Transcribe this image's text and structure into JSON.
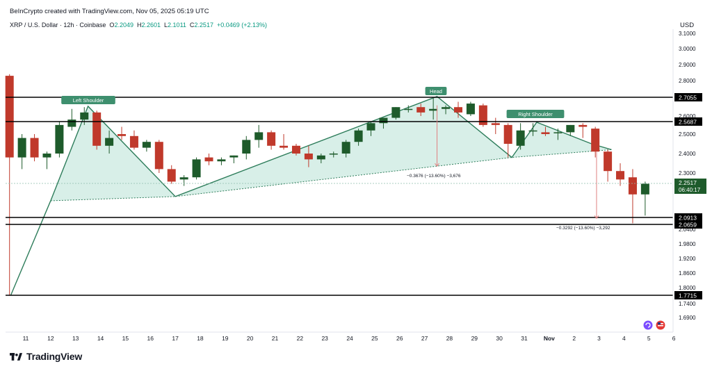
{
  "attribution": "BeInCrypto created with TradingView.com, Nov 05, 2025 05:19 UTC",
  "symbol": {
    "title": "XRP / U.S. Dollar · 12h · Coinbase",
    "o_label": "O",
    "o": "2.2049",
    "h_label": "H",
    "h": "2.2601",
    "l_label": "L",
    "l": "2.1011",
    "c_label": "C",
    "c": "2.2517",
    "change": "+0.0469 (+2.13%)"
  },
  "currency": "USD",
  "logo_text": "TradingView",
  "colors": {
    "up": "#1e5b2b",
    "down": "#c0392b",
    "pattern_fill": "#d4ede6",
    "pattern_line": "#2e7d5b",
    "badge": "#3e8f6e",
    "measure_line": "#e08080",
    "axis_text": "#131722"
  },
  "chart_data": {
    "type": "candlestick",
    "ylim": [
      1.65,
      3.12
    ],
    "y_ticks": [
      "3.1000",
      "3.0000",
      "2.9000",
      "2.8000",
      "2.6000",
      "2.5000",
      "2.4000",
      "2.3000",
      "2.0400",
      "1.9800",
      "1.9200",
      "1.8600",
      "1.8000",
      "1.7400",
      "1.6900"
    ],
    "x_ticks": [
      "11",
      "12",
      "13",
      "14",
      "15",
      "16",
      "17",
      "18",
      "19",
      "20",
      "21",
      "22",
      "23",
      "24",
      "25",
      "26",
      "27",
      "28",
      "29",
      "30",
      "31",
      "Nov",
      "2",
      "3",
      "4",
      "5",
      "6"
    ],
    "candles": [
      {
        "x": 10.35,
        "o": 2.83,
        "h": 2.84,
        "l": 1.77,
        "c": 2.38
      },
      {
        "x": 10.85,
        "o": 2.38,
        "h": 2.5,
        "l": 2.32,
        "c": 2.48
      },
      {
        "x": 11.35,
        "o": 2.48,
        "h": 2.5,
        "l": 2.36,
        "c": 2.38
      },
      {
        "x": 11.85,
        "o": 2.38,
        "h": 2.41,
        "l": 2.32,
        "c": 2.4
      },
      {
        "x": 12.35,
        "o": 2.4,
        "h": 2.57,
        "l": 2.38,
        "c": 2.55
      },
      {
        "x": 12.85,
        "o": 2.54,
        "h": 2.64,
        "l": 2.52,
        "c": 2.58
      },
      {
        "x": 13.35,
        "o": 2.58,
        "h": 2.65,
        "l": 2.55,
        "c": 2.62
      },
      {
        "x": 13.85,
        "o": 2.62,
        "h": 2.63,
        "l": 2.42,
        "c": 2.44
      },
      {
        "x": 14.35,
        "o": 2.44,
        "h": 2.52,
        "l": 2.4,
        "c": 2.48
      },
      {
        "x": 14.85,
        "o": 2.5,
        "h": 2.54,
        "l": 2.47,
        "c": 2.49
      },
      {
        "x": 15.35,
        "o": 2.49,
        "h": 2.52,
        "l": 2.42,
        "c": 2.43
      },
      {
        "x": 15.85,
        "o": 2.43,
        "h": 2.47,
        "l": 2.41,
        "c": 2.46
      },
      {
        "x": 16.35,
        "o": 2.46,
        "h": 2.47,
        "l": 2.3,
        "c": 2.32
      },
      {
        "x": 16.85,
        "o": 2.32,
        "h": 2.34,
        "l": 2.25,
        "c": 2.26
      },
      {
        "x": 17.35,
        "o": 2.27,
        "h": 2.29,
        "l": 2.24,
        "c": 2.28
      },
      {
        "x": 17.85,
        "o": 2.28,
        "h": 2.38,
        "l": 2.27,
        "c": 2.37
      },
      {
        "x": 18.35,
        "o": 2.38,
        "h": 2.4,
        "l": 2.34,
        "c": 2.36
      },
      {
        "x": 18.85,
        "o": 2.36,
        "h": 2.38,
        "l": 2.34,
        "c": 2.37
      },
      {
        "x": 19.35,
        "o": 2.38,
        "h": 2.39,
        "l": 2.35,
        "c": 2.39
      },
      {
        "x": 19.85,
        "o": 2.4,
        "h": 2.49,
        "l": 2.37,
        "c": 2.47
      },
      {
        "x": 20.35,
        "o": 2.47,
        "h": 2.55,
        "l": 2.43,
        "c": 2.51
      },
      {
        "x": 20.85,
        "o": 2.51,
        "h": 2.52,
        "l": 2.42,
        "c": 2.44
      },
      {
        "x": 21.35,
        "o": 2.44,
        "h": 2.5,
        "l": 2.42,
        "c": 2.43
      },
      {
        "x": 21.85,
        "o": 2.44,
        "h": 2.45,
        "l": 2.39,
        "c": 2.4
      },
      {
        "x": 22.35,
        "o": 2.4,
        "h": 2.44,
        "l": 2.33,
        "c": 2.37
      },
      {
        "x": 22.85,
        "o": 2.37,
        "h": 2.4,
        "l": 2.35,
        "c": 2.39
      },
      {
        "x": 23.35,
        "o": 2.4,
        "h": 2.41,
        "l": 2.38,
        "c": 2.4
      },
      {
        "x": 23.85,
        "o": 2.4,
        "h": 2.47,
        "l": 2.38,
        "c": 2.46
      },
      {
        "x": 24.35,
        "o": 2.46,
        "h": 2.53,
        "l": 2.44,
        "c": 2.52
      },
      {
        "x": 24.85,
        "o": 2.52,
        "h": 2.57,
        "l": 2.49,
        "c": 2.56
      },
      {
        "x": 25.35,
        "o": 2.56,
        "h": 2.59,
        "l": 2.53,
        "c": 2.59
      },
      {
        "x": 25.85,
        "o": 2.59,
        "h": 2.65,
        "l": 2.58,
        "c": 2.65
      },
      {
        "x": 26.35,
        "o": 2.64,
        "h": 2.66,
        "l": 2.62,
        "c": 2.64
      },
      {
        "x": 26.85,
        "o": 2.65,
        "h": 2.67,
        "l": 2.6,
        "c": 2.62
      },
      {
        "x": 27.35,
        "o": 2.63,
        "h": 2.7,
        "l": 2.58,
        "c": 2.64
      },
      {
        "x": 27.85,
        "o": 2.64,
        "h": 2.66,
        "l": 2.61,
        "c": 2.65
      },
      {
        "x": 28.35,
        "o": 2.65,
        "h": 2.68,
        "l": 2.59,
        "c": 2.62
      },
      {
        "x": 28.85,
        "o": 2.61,
        "h": 2.68,
        "l": 2.6,
        "c": 2.67
      },
      {
        "x": 29.35,
        "o": 2.66,
        "h": 2.67,
        "l": 2.54,
        "c": 2.55
      },
      {
        "x": 29.85,
        "o": 2.56,
        "h": 2.59,
        "l": 2.5,
        "c": 2.55
      },
      {
        "x": 30.35,
        "o": 2.55,
        "h": 2.56,
        "l": 2.38,
        "c": 2.45
      },
      {
        "x": 30.85,
        "o": 2.44,
        "h": 2.56,
        "l": 2.42,
        "c": 2.52
      },
      {
        "x": 31.35,
        "o": 2.52,
        "h": 2.56,
        "l": 2.49,
        "c": 2.52
      },
      {
        "x": 31.85,
        "o": 2.51,
        "h": 2.54,
        "l": 2.49,
        "c": 2.5
      },
      {
        "x": 32.35,
        "o": 2.51,
        "h": 2.53,
        "l": 2.47,
        "c": 2.51
      },
      {
        "x": 32.85,
        "o": 2.51,
        "h": 2.55,
        "l": 2.49,
        "c": 2.55
      },
      {
        "x": 33.35,
        "o": 2.55,
        "h": 2.56,
        "l": 2.48,
        "c": 2.54
      },
      {
        "x": 33.85,
        "o": 2.53,
        "h": 2.54,
        "l": 2.38,
        "c": 2.41
      },
      {
        "x": 34.35,
        "o": 2.41,
        "h": 2.42,
        "l": 2.26,
        "c": 2.31
      },
      {
        "x": 34.85,
        "o": 2.31,
        "h": 2.35,
        "l": 2.24,
        "c": 2.27
      },
      {
        "x": 35.35,
        "o": 2.28,
        "h": 2.32,
        "l": 2.07,
        "c": 2.2
      },
      {
        "x": 35.85,
        "o": 2.2,
        "h": 2.26,
        "l": 2.1,
        "c": 2.25
      }
    ],
    "levels": [
      "2.7055",
      "2.5687",
      "2.0913",
      "2.0659",
      "1.7715"
    ],
    "current_price": "2.2517",
    "countdown": "06:40:17",
    "annotations": {
      "left_shoulder": "Left Shoulder",
      "head": "Head",
      "right_shoulder": "Right Shoulder",
      "measure_1": "−0.3676 (−13.60%) −3,676",
      "measure_2": "−0.3292 (−13.60%) −3,292"
    }
  }
}
